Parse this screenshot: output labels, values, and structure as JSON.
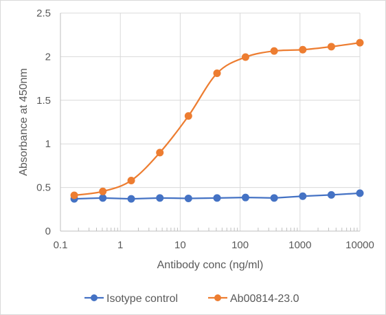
{
  "chart_data": {
    "type": "line",
    "title": "",
    "xlabel": "Antibody conc (ng/ml)",
    "ylabel": "Absorbance at 450nm",
    "x_scale": "log",
    "xlim": [
      0.1,
      10000
    ],
    "ylim": [
      0,
      2.5
    ],
    "x_ticks": [
      0.1,
      1,
      10,
      100,
      1000,
      10000
    ],
    "x_tick_labels": [
      "0.1",
      "1",
      "10",
      "100",
      "1000",
      "10000"
    ],
    "y_ticks": [
      0,
      0.5,
      1,
      1.5,
      2,
      2.5
    ],
    "y_tick_labels": [
      "0",
      "0.5",
      "1",
      "1.5",
      "2",
      "2.5"
    ],
    "grid": true,
    "legend_position": "bottom",
    "x": [
      0.17,
      0.51,
      1.52,
      4.57,
      13.7,
      41.2,
      123,
      370,
      1111,
      3333,
      10000
    ],
    "series": [
      {
        "name": "Isotype control",
        "color": "#4472C4",
        "smooth": false,
        "values": [
          0.37,
          0.38,
          0.37,
          0.38,
          0.375,
          0.38,
          0.385,
          0.38,
          0.4,
          0.415,
          0.435
        ]
      },
      {
        "name": "Ab00814-23.0",
        "color": "#ED7D31",
        "smooth": true,
        "values": [
          0.41,
          0.455,
          0.58,
          0.9,
          1.32,
          1.81,
          1.995,
          2.065,
          2.08,
          2.115,
          2.16
        ]
      }
    ]
  }
}
